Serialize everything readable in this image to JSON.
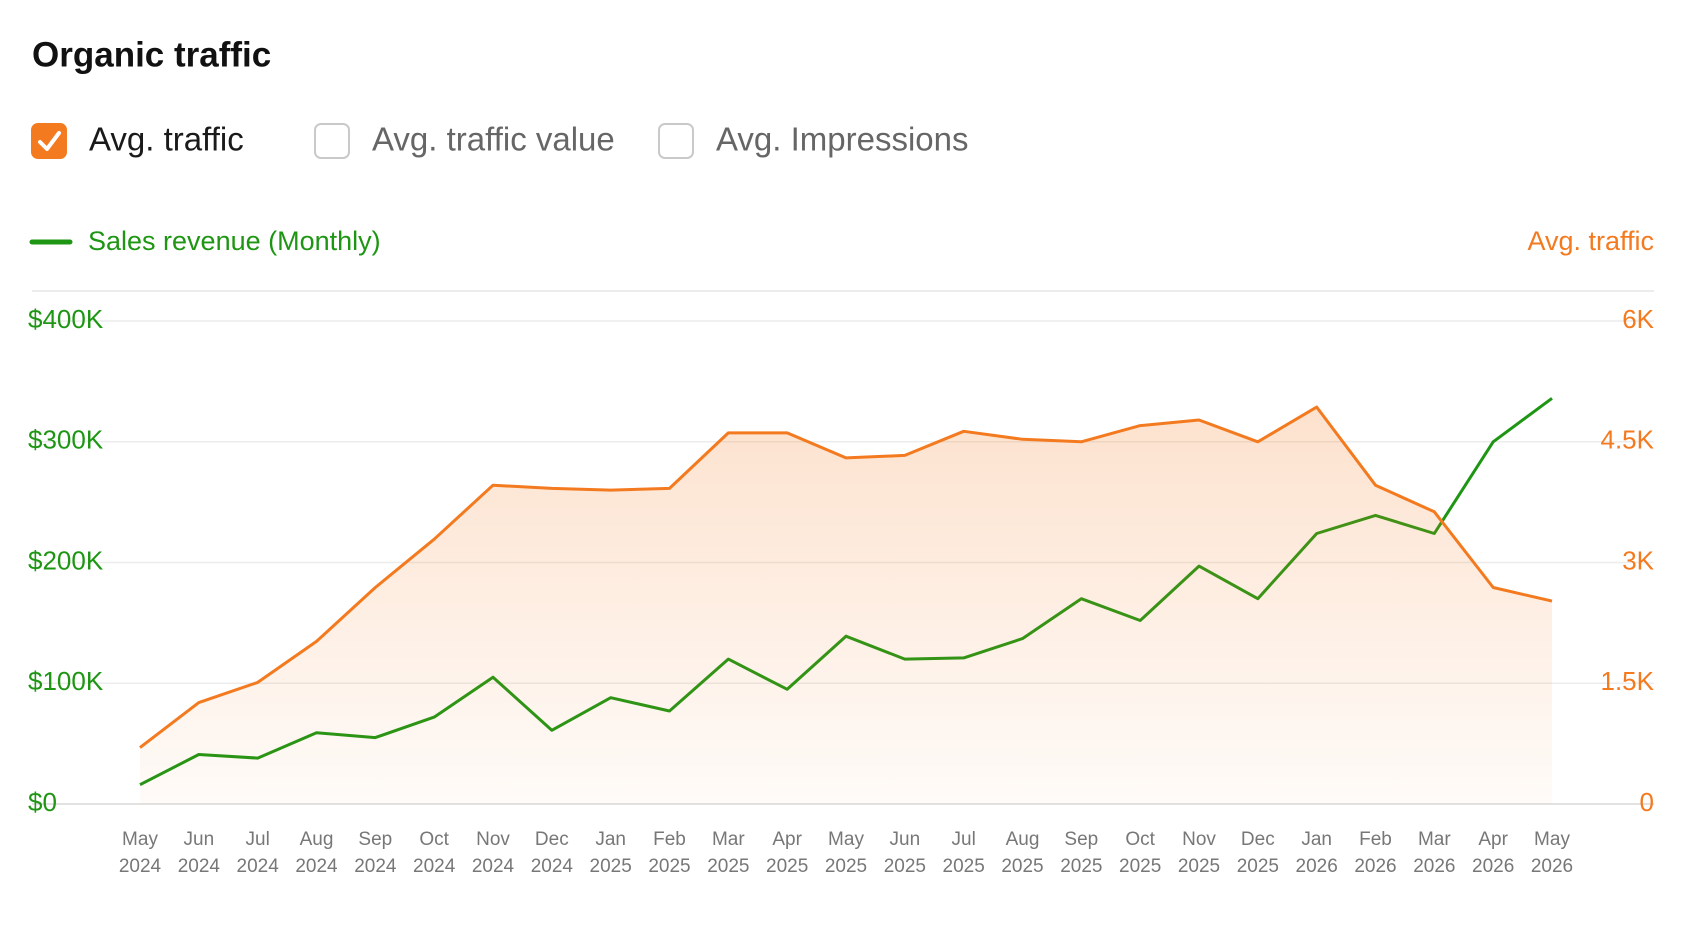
{
  "checkboxes": [
    {
      "label": "Avg. traffic",
      "checked": true
    },
    {
      "label": "Avg. traffic value",
      "checked": false
    },
    {
      "label": "Avg. Impressions",
      "checked": false
    }
  ],
  "chart_data": {
    "type": "line",
    "title": "Organic traffic",
    "categories": [
      "May 2024",
      "Jun 2024",
      "Jul 2024",
      "Aug 2024",
      "Sep 2024",
      "Oct 2024",
      "Nov 2024",
      "Dec 2024",
      "Jan 2025",
      "Feb 2025",
      "Mar 2025",
      "Apr 2025",
      "May 2025",
      "Jun 2025",
      "Jul 2025",
      "Aug 2025",
      "Sep 2025",
      "Oct 2025",
      "Nov 2025",
      "Dec 2025",
      "Jan 2026",
      "Feb 2026",
      "Mar 2026",
      "Apr 2026",
      "May 2026"
    ],
    "series": [
      {
        "name": "Sales revenue (Monthly)",
        "color": "#1e9614",
        "axis": "y",
        "values": [
          16000,
          41000,
          38000,
          59000,
          55000,
          72000,
          105000,
          61000,
          88000,
          77000,
          120000,
          95000,
          139000,
          120000,
          121000,
          137000,
          170000,
          152000,
          197000,
          170000,
          224000,
          239000,
          224000,
          300000,
          336000
        ]
      },
      {
        "name": "Avg. traffic",
        "color": "#f47a1f",
        "axis": "y2",
        "area": true,
        "values": [
          700,
          1260,
          1510,
          2020,
          2690,
          3290,
          3960,
          3920,
          3900,
          3920,
          4610,
          4610,
          4300,
          4330,
          4630,
          4530,
          4500,
          4700,
          4770,
          4500,
          4930,
          3960,
          3630,
          2690,
          2520
        ]
      }
    ],
    "ylim": [
      0,
      400000
    ],
    "yticks": [
      {
        "value": 0,
        "label": "$0"
      },
      {
        "value": 100000,
        "label": "$100K"
      },
      {
        "value": 200000,
        "label": "$200K"
      },
      {
        "value": 300000,
        "label": "$300K"
      },
      {
        "value": 400000,
        "label": "$400K"
      }
    ],
    "y2lim": [
      0,
      6000
    ],
    "y2ticks": [
      0,
      {
        "value": 1500,
        "label": "1.5K"
      },
      {
        "value": 3000,
        "label": "3K"
      },
      {
        "value": 4500,
        "label": "4.5K"
      },
      {
        "value": 6000,
        "label": "6K"
      }
    ],
    "grid": true
  }
}
